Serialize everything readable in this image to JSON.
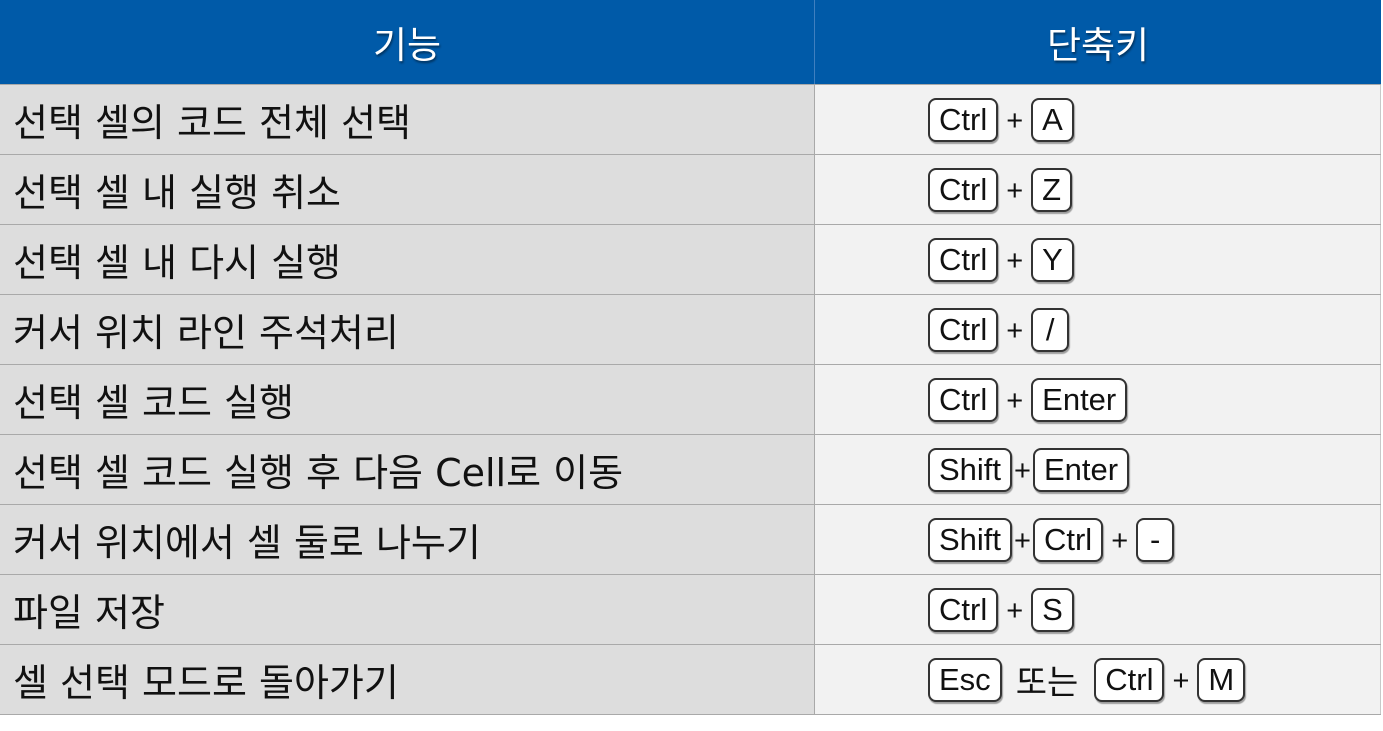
{
  "header": {
    "feature": "기능",
    "shortcut": "단축키"
  },
  "rows": [
    {
      "feature": "선택 셀의 코드 전체 선택",
      "keys": [
        "Ctrl",
        "A"
      ]
    },
    {
      "feature": "선택 셀 내 실행 취소",
      "keys": [
        "Ctrl",
        "Z"
      ]
    },
    {
      "feature": "선택 셀 내 다시 실행",
      "keys": [
        "Ctrl",
        "Y"
      ]
    },
    {
      "feature": "커서 위치 라인 주석처리",
      "keys": [
        "Ctrl",
        "/"
      ]
    },
    {
      "feature": "선택 셀 코드 실행",
      "keys": [
        "Ctrl",
        "Enter"
      ]
    },
    {
      "feature": "선택 셀 코드 실행 후 다음 Cell로 이동",
      "keys": [
        "Shift",
        "Enter"
      ]
    },
    {
      "feature": "커서 위치에서 셀 둘로 나누기",
      "keys": [
        "Shift",
        "Ctrl",
        "-"
      ]
    },
    {
      "feature": "파일 저장",
      "keys": [
        "Ctrl",
        "S"
      ]
    },
    {
      "feature": "셀 선택 모드로 돌아가기",
      "keys": [
        "Esc"
      ],
      "alt_separator": "또는",
      "alt_keys": [
        "Ctrl",
        "M"
      ]
    }
  ],
  "plus_sign": "+",
  "colors": {
    "header_bg": "#005aa8",
    "feature_cell_bg": "#dddddd",
    "shortcut_cell_bg": "#f2f2f2"
  }
}
